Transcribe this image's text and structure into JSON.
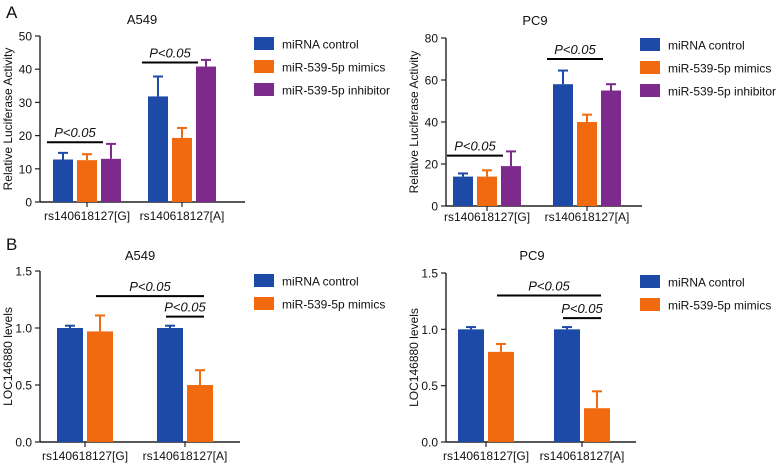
{
  "colors": {
    "miRNA_control": "#1c4aa6",
    "mimics": "#f26a10",
    "inhibitor": "#7e2a8c",
    "axis": "#222222"
  },
  "panel_labels": [
    "A",
    "B"
  ],
  "chart_data": [
    {
      "id": "A-A549",
      "type": "bar",
      "title": "A549",
      "ylabel": "Relative  Luciferase Activity",
      "ylim": [
        0,
        50
      ],
      "yticks": [
        "0",
        "10",
        "20",
        "30",
        "40",
        "50"
      ],
      "categories": [
        "rs140618127[G]",
        "rs140618127[A]"
      ],
      "series": [
        {
          "name": "miRNA control",
          "color_key": "miRNA_control",
          "values": [
            12.8,
            31.8
          ],
          "errors": [
            2.0,
            6.0
          ]
        },
        {
          "name": "miR-539-5p mimics",
          "color_key": "mimics",
          "values": [
            12.6,
            19.3
          ],
          "errors": [
            1.8,
            3.0
          ]
        },
        {
          "name": "miR-539-5p inhibitor",
          "color_key": "inhibitor",
          "values": [
            13.0,
            40.8
          ],
          "errors": [
            4.5,
            2.0
          ]
        }
      ],
      "annotations": [
        {
          "text": "P<0.05",
          "category": 0,
          "from_series": 0,
          "to_series": 1,
          "y": 18
        },
        {
          "text": "P<0.05",
          "category": 1,
          "from_series": 0,
          "to_series": 1,
          "y": 42
        }
      ],
      "legend": "right"
    },
    {
      "id": "A-PC9",
      "type": "bar",
      "title": "PC9",
      "ylabel": "Relative  Luciferase Activity",
      "ylim": [
        0,
        80
      ],
      "yticks": [
        "0",
        "20",
        "40",
        "60",
        "80"
      ],
      "categories": [
        "rs140618127[G]",
        "rs140618127[A]"
      ],
      "series": [
        {
          "name": "miRNA control",
          "color_key": "miRNA_control",
          "values": [
            14.0,
            58.0
          ],
          "errors": [
            1.5,
            6.5
          ]
        },
        {
          "name": "miR-539-5p mimics",
          "color_key": "mimics",
          "values": [
            14.0,
            40.0
          ],
          "errors": [
            3.0,
            3.5
          ]
        },
        {
          "name": "miR-539-5p inhibitor",
          "color_key": "inhibitor",
          "values": [
            19.0,
            55.0
          ],
          "errors": [
            7.0,
            3.0
          ]
        }
      ],
      "annotations": [
        {
          "text": "P<0.05",
          "category": 0,
          "from_series": 0,
          "to_series": 1,
          "y": 24
        },
        {
          "text": "P<0.05",
          "category": 1,
          "from_series": 0,
          "to_series": 1,
          "y": 70
        }
      ],
      "legend": "right"
    },
    {
      "id": "B-A549",
      "type": "bar",
      "title": "A549",
      "ylabel": "LOC146880 levels",
      "ylim": [
        0,
        1.5
      ],
      "yticks": [
        "0.0",
        "0.5",
        "1.0",
        "1.5"
      ],
      "categories": [
        "rs140618127[G]",
        "rs140618127[A]"
      ],
      "series": [
        {
          "name": "miRNA control",
          "color_key": "miRNA_control",
          "values": [
            1.0,
            1.0
          ],
          "errors": [
            0.02,
            0.02
          ]
        },
        {
          "name": "miR-539-5p mimics",
          "color_key": "mimics",
          "values": [
            0.97,
            0.5
          ],
          "errors": [
            0.14,
            0.13
          ]
        }
      ],
      "annotations": [
        {
          "text": "P<0.05",
          "from": [
            0,
            1
          ],
          "to": [
            1,
            1
          ],
          "y": 1.28
        },
        {
          "text": "P<0.05",
          "from": [
            1,
            0
          ],
          "to": [
            1,
            1
          ],
          "y": 1.1
        }
      ],
      "legend": "right"
    },
    {
      "id": "B-PC9",
      "type": "bar",
      "title": "PC9",
      "ylabel": "LOC146880 levels",
      "ylim": [
        0,
        1.5
      ],
      "yticks": [
        "0.0",
        "0.5",
        "1.0",
        "1.5"
      ],
      "categories": [
        "rs140618127[G]",
        "rs140618127[A]"
      ],
      "series": [
        {
          "name": "miRNA control",
          "color_key": "miRNA_control",
          "values": [
            1.0,
            1.0
          ],
          "errors": [
            0.02,
            0.02
          ]
        },
        {
          "name": "miR-539-5p mimics",
          "color_key": "mimics",
          "values": [
            0.8,
            0.3
          ],
          "errors": [
            0.07,
            0.15
          ]
        }
      ],
      "annotations": [
        {
          "text": "P<0.05",
          "from": [
            0,
            1
          ],
          "to": [
            1,
            1
          ],
          "y": 1.3
        },
        {
          "text": "P<0.05",
          "from": [
            1,
            0
          ],
          "to": [
            1,
            1
          ],
          "y": 1.1
        }
      ],
      "legend": "right"
    }
  ]
}
